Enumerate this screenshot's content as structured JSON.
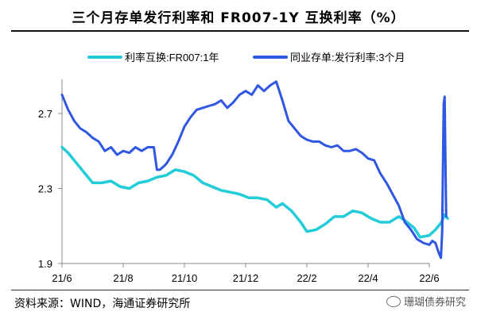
{
  "colors": {
    "series_a": "#22cdd8",
    "series_b": "#2f57e2",
    "axis": "#888888"
  },
  "chart_data": {
    "type": "line",
    "title": "三个月存单发行利率和 FR007-1Y 互换利率（%）",
    "source": "资料来源：WIND，海通证券研究所",
    "watermark": "珊瑚债券研究",
    "xlabel": "",
    "ylabel": "",
    "ylim": [
      1.9,
      2.9
    ],
    "yticks": [
      "1.9",
      "2.3",
      "2.7"
    ],
    "xticks": [
      "21/6",
      "21/8",
      "21/10",
      "21/12",
      "22/2",
      "22/4",
      "22/6"
    ],
    "x_range": [
      0,
      12.5
    ],
    "legend_position": "top",
    "series": [
      {
        "name": "利率互换:FR007:1年",
        "color": "#22cdd8",
        "points": [
          [
            0.0,
            2.52
          ],
          [
            0.2,
            2.49
          ],
          [
            0.4,
            2.45
          ],
          [
            0.6,
            2.41
          ],
          [
            0.8,
            2.37
          ],
          [
            1.0,
            2.33
          ],
          [
            1.3,
            2.33
          ],
          [
            1.6,
            2.34
          ],
          [
            1.9,
            2.31
          ],
          [
            2.2,
            2.3
          ],
          [
            2.5,
            2.33
          ],
          [
            2.8,
            2.34
          ],
          [
            3.1,
            2.36
          ],
          [
            3.4,
            2.37
          ],
          [
            3.7,
            2.4
          ],
          [
            4.0,
            2.39
          ],
          [
            4.3,
            2.37
          ],
          [
            4.6,
            2.33
          ],
          [
            4.9,
            2.31
          ],
          [
            5.2,
            2.29
          ],
          [
            5.5,
            2.28
          ],
          [
            5.8,
            2.27
          ],
          [
            6.1,
            2.25
          ],
          [
            6.4,
            2.25
          ],
          [
            6.7,
            2.24
          ],
          [
            7.0,
            2.2
          ],
          [
            7.2,
            2.22
          ],
          [
            7.5,
            2.18
          ],
          [
            7.8,
            2.12
          ],
          [
            8.0,
            2.07
          ],
          [
            8.3,
            2.08
          ],
          [
            8.6,
            2.11
          ],
          [
            8.9,
            2.15
          ],
          [
            9.2,
            2.15
          ],
          [
            9.5,
            2.18
          ],
          [
            9.8,
            2.17
          ],
          [
            10.1,
            2.14
          ],
          [
            10.4,
            2.12
          ],
          [
            10.7,
            2.12
          ],
          [
            11.0,
            2.15
          ],
          [
            11.2,
            2.13
          ],
          [
            11.5,
            2.09
          ],
          [
            11.7,
            2.04
          ],
          [
            12.0,
            2.05
          ],
          [
            12.2,
            2.08
          ],
          [
            12.4,
            2.12
          ],
          [
            12.5,
            2.16
          ],
          [
            12.6,
            2.14
          ]
        ]
      },
      {
        "name": "同业存单:发行利率:3个月",
        "color": "#2f57e2",
        "points": [
          [
            0.0,
            2.8
          ],
          [
            0.2,
            2.72
          ],
          [
            0.4,
            2.66
          ],
          [
            0.6,
            2.62
          ],
          [
            0.8,
            2.6
          ],
          [
            1.0,
            2.57
          ],
          [
            1.2,
            2.55
          ],
          [
            1.4,
            2.5
          ],
          [
            1.6,
            2.52
          ],
          [
            1.8,
            2.48
          ],
          [
            2.0,
            2.5
          ],
          [
            2.2,
            2.49
          ],
          [
            2.4,
            2.52
          ],
          [
            2.6,
            2.5
          ],
          [
            2.8,
            2.52
          ],
          [
            3.0,
            2.52
          ],
          [
            3.1,
            2.4
          ],
          [
            3.2,
            2.4
          ],
          [
            3.4,
            2.43
          ],
          [
            3.6,
            2.48
          ],
          [
            3.8,
            2.55
          ],
          [
            4.0,
            2.63
          ],
          [
            4.2,
            2.68
          ],
          [
            4.4,
            2.72
          ],
          [
            4.6,
            2.73
          ],
          [
            4.8,
            2.74
          ],
          [
            5.0,
            2.75
          ],
          [
            5.2,
            2.77
          ],
          [
            5.4,
            2.73
          ],
          [
            5.6,
            2.76
          ],
          [
            5.8,
            2.8
          ],
          [
            6.0,
            2.82
          ],
          [
            6.2,
            2.8
          ],
          [
            6.4,
            2.85
          ],
          [
            6.6,
            2.82
          ],
          [
            6.8,
            2.85
          ],
          [
            7.0,
            2.87
          ],
          [
            7.2,
            2.77
          ],
          [
            7.4,
            2.66
          ],
          [
            7.6,
            2.62
          ],
          [
            7.8,
            2.58
          ],
          [
            8.0,
            2.56
          ],
          [
            8.2,
            2.55
          ],
          [
            8.4,
            2.55
          ],
          [
            8.6,
            2.53
          ],
          [
            8.8,
            2.52
          ],
          [
            9.0,
            2.53
          ],
          [
            9.2,
            2.5
          ],
          [
            9.4,
            2.5
          ],
          [
            9.6,
            2.51
          ],
          [
            9.8,
            2.49
          ],
          [
            10.0,
            2.46
          ],
          [
            10.2,
            2.45
          ],
          [
            10.4,
            2.38
          ],
          [
            10.6,
            2.33
          ],
          [
            10.8,
            2.27
          ],
          [
            11.0,
            2.21
          ],
          [
            11.2,
            2.12
          ],
          [
            11.4,
            2.08
          ],
          [
            11.6,
            2.03
          ],
          [
            11.8,
            2.01
          ],
          [
            12.0,
            2.0
          ],
          [
            12.1,
            2.02
          ],
          [
            12.2,
            2.01
          ],
          [
            12.3,
            1.96
          ],
          [
            12.38,
            1.93
          ],
          [
            12.42,
            2.07
          ],
          [
            12.47,
            2.75
          ],
          [
            12.5,
            2.79
          ],
          [
            12.55,
            2.15
          ]
        ]
      }
    ]
  }
}
